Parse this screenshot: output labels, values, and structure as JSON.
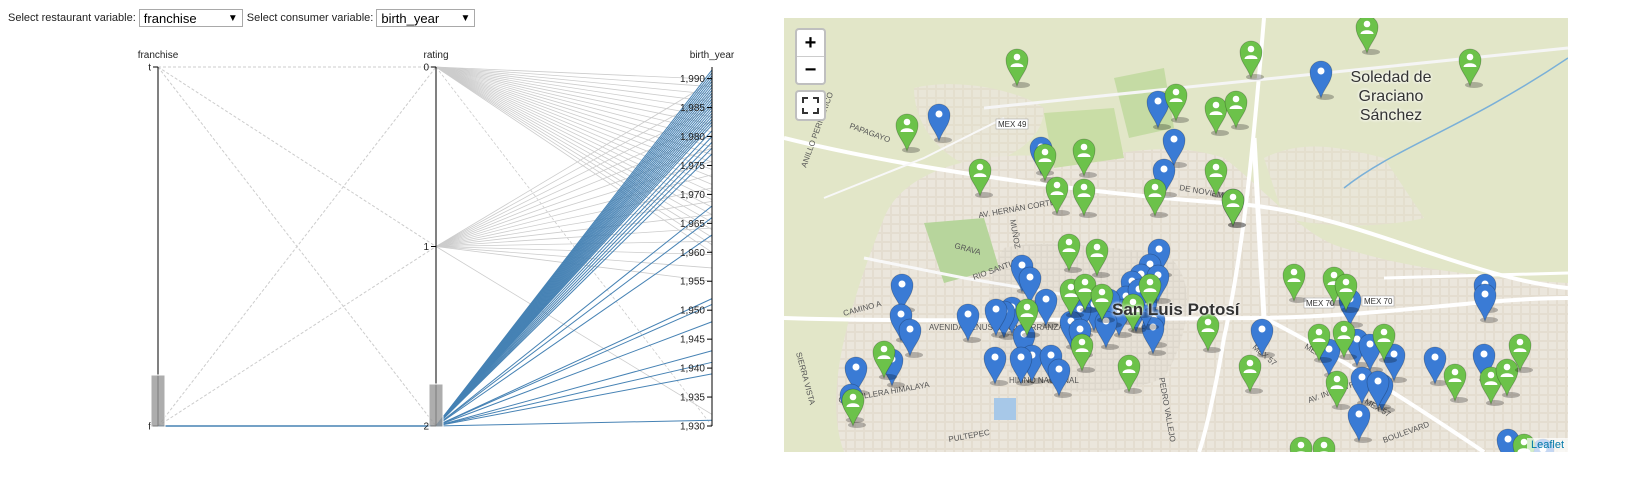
{
  "controls": {
    "restaurant_label": "Select restaurant variable:",
    "restaurant_value": "franchise",
    "consumer_label": "Select consumer variable:",
    "consumer_value": "birth_year"
  },
  "chart_data": {
    "type": "parallel-coordinates",
    "axes": [
      {
        "name": "franchise",
        "ticks": [
          "t",
          "f"
        ]
      },
      {
        "name": "rating",
        "ticks": [
          "0",
          "1",
          "2"
        ]
      },
      {
        "name": "birth_year",
        "ticks": [
          "1,990",
          "1,985",
          "1,980",
          "1,975",
          "1,970",
          "1,965",
          "1,960",
          "1,955",
          "1,950",
          "1,945",
          "1,940",
          "1,935",
          "1,930"
        ],
        "range": [
          1930,
          1992
        ]
      }
    ],
    "highlighted_color": "#4682b4",
    "context_color": "#cccccc",
    "brushes": [
      {
        "axis": "franchise",
        "selected": "f"
      },
      {
        "axis": "rating",
        "selected": "2"
      }
    ]
  },
  "map": {
    "city_name": "Soledad de Graciano Sánchez",
    "center_label": "San Luis Potosí",
    "road_labels": [
      "MEX 49",
      "PAPAGAYO",
      "ANILLO PERIFÉRICO",
      "AV. HERNÁN CORTÉS",
      "MUÑOZ",
      "GRAVA",
      "RIO SANTIAGO",
      "CAMINO A",
      "AVENIDA VENUSTIANO CARRANZA",
      "SIERRA VISTA",
      "CORDILLERA HIMALAYA",
      "HIMNO NACIONAL",
      "PEDRO VALLEJO",
      "MEX 70",
      "MEX 70",
      "MEX 57",
      "MEX 57",
      "AV. INDUSTRIAS",
      "BOULEVARD",
      "PULTEPEC",
      "DE NOVIEMBRE",
      "MEX 57"
    ],
    "zoom_in": "+",
    "zoom_out": "−",
    "attribution": "Leaflet",
    "marker_colors": {
      "restaurant": "#3a7bd5",
      "consumer": "#6cc24a"
    },
    "restaurant_markers": [
      [
        155,
        105
      ],
      [
        374,
        92
      ],
      [
        257,
        138
      ],
      [
        390,
        130
      ],
      [
        380,
        160
      ],
      [
        537,
        62
      ],
      [
        449,
        190
      ],
      [
        238,
        256
      ],
      [
        246,
        268
      ],
      [
        375,
        240
      ],
      [
        366,
        255
      ],
      [
        357,
        265
      ],
      [
        348,
        272
      ],
      [
        342,
        287
      ],
      [
        352,
        296
      ],
      [
        335,
        300
      ],
      [
        325,
        290
      ],
      [
        310,
        295
      ],
      [
        296,
        300
      ],
      [
        262,
        290
      ],
      [
        228,
        298
      ],
      [
        220,
        302
      ],
      [
        212,
        300
      ],
      [
        184,
        305
      ],
      [
        118,
        275
      ],
      [
        117,
        305
      ],
      [
        126,
        320
      ],
      [
        72,
        358
      ],
      [
        67,
        385
      ],
      [
        108,
        350
      ],
      [
        240,
        325
      ],
      [
        248,
        346
      ],
      [
        211,
        348
      ],
      [
        237,
        348
      ],
      [
        267,
        346
      ],
      [
        275,
        360
      ],
      [
        287,
        312
      ],
      [
        296,
        320
      ],
      [
        322,
        312
      ],
      [
        370,
        310
      ],
      [
        369,
        318
      ],
      [
        478,
        320
      ],
      [
        362,
        292
      ],
      [
        374,
        266
      ],
      [
        355,
        280
      ],
      [
        566,
        290
      ],
      [
        545,
        340
      ],
      [
        573,
        330
      ],
      [
        586,
        335
      ],
      [
        610,
        345
      ],
      [
        578,
        368
      ],
      [
        598,
        375
      ],
      [
        594,
        372
      ],
      [
        575,
        405
      ],
      [
        651,
        348
      ],
      [
        700,
        345
      ],
      [
        701,
        275
      ],
      [
        701,
        285
      ],
      [
        724,
        430
      ],
      [
        759,
        440
      ]
    ],
    "consumer_markers": [
      [
        233,
        50
      ],
      [
        467,
        42
      ],
      [
        686,
        50
      ],
      [
        583,
        17
      ],
      [
        123,
        115
      ],
      [
        196,
        160
      ],
      [
        261,
        145
      ],
      [
        300,
        140
      ],
      [
        392,
        85
      ],
      [
        432,
        98
      ],
      [
        452,
        92
      ],
      [
        432,
        160
      ],
      [
        371,
        180
      ],
      [
        449,
        190
      ],
      [
        273,
        178
      ],
      [
        300,
        180
      ],
      [
        285,
        235
      ],
      [
        313,
        240
      ],
      [
        287,
        280
      ],
      [
        301,
        275
      ],
      [
        318,
        285
      ],
      [
        349,
        295
      ],
      [
        366,
        275
      ],
      [
        424,
        315
      ],
      [
        243,
        300
      ],
      [
        298,
        335
      ],
      [
        345,
        356
      ],
      [
        510,
        265
      ],
      [
        550,
        268
      ],
      [
        562,
        275
      ],
      [
        535,
        325
      ],
      [
        560,
        322
      ],
      [
        600,
        325
      ],
      [
        553,
        372
      ],
      [
        466,
        356
      ],
      [
        671,
        365
      ],
      [
        707,
        368
      ],
      [
        723,
        360
      ],
      [
        736,
        335
      ],
      [
        740,
        435
      ],
      [
        69,
        390
      ],
      [
        100,
        342
      ],
      [
        517,
        438
      ],
      [
        540,
        438
      ]
    ]
  }
}
